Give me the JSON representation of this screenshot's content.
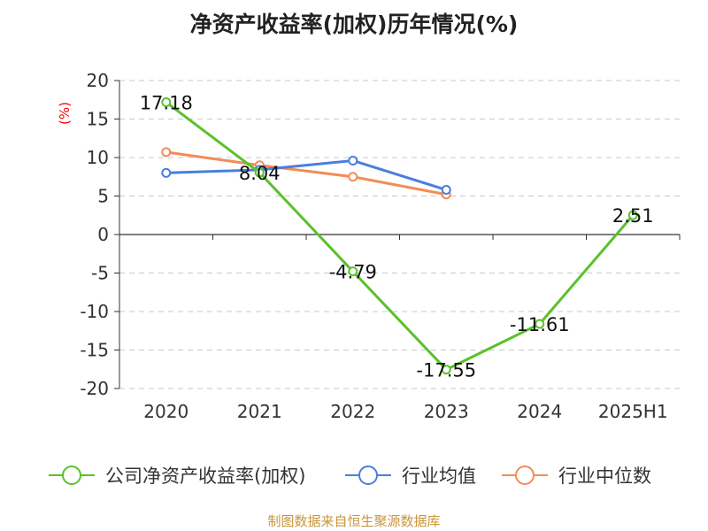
{
  "chart_data": {
    "type": "line",
    "title": "净资产收益率(加权)历年情况(%)",
    "ylabel": "(%)",
    "xlabel": "",
    "categories": [
      "2020",
      "2021",
      "2022",
      "2023",
      "2024",
      "2025H1"
    ],
    "ylim": [
      -20,
      20
    ],
    "yticks": [
      20,
      15,
      10,
      5,
      0,
      -5,
      -10,
      -15,
      -20
    ],
    "grid": true,
    "legend_position": "bottom",
    "series": [
      {
        "name": "公司净资产收益率(加权)",
        "color": "#5ac12b",
        "values": [
          17.18,
          8.04,
          -4.79,
          -17.55,
          -11.61,
          2.51
        ],
        "labels": [
          "17.18",
          "8.04",
          "-4.79",
          "-17.55",
          "-11.61",
          "2.51"
        ]
      },
      {
        "name": "行业均值",
        "color": "#4a7fdc",
        "values": [
          8.0,
          8.4,
          9.6,
          5.8,
          null,
          null
        ]
      },
      {
        "name": "行业中位数",
        "color": "#f28c58",
        "values": [
          10.7,
          9.0,
          7.5,
          5.2,
          null,
          null
        ]
      }
    ]
  },
  "source": "制图数据来自恒生聚源数据库"
}
